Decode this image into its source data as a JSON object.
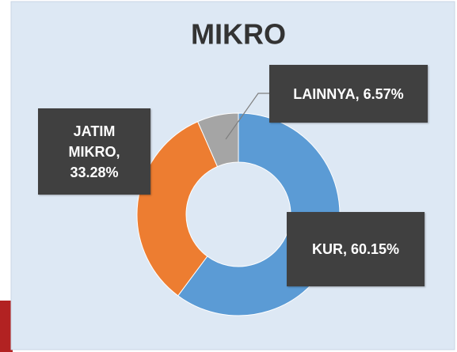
{
  "chart_data": {
    "type": "donut",
    "title": "MIKRO",
    "categories": [
      "KUR",
      "JATIM MIKRO",
      "LAINNYA"
    ],
    "values": [
      60.15,
      33.28,
      6.57
    ],
    "value_labels": [
      "KUR, 60.15%",
      "JATIM MIKRO, 33.28%",
      "LAINNYA, 6.57%"
    ],
    "colors": [
      "#5b9bd5",
      "#ed7d31",
      "#a5a5a5"
    ]
  }
}
